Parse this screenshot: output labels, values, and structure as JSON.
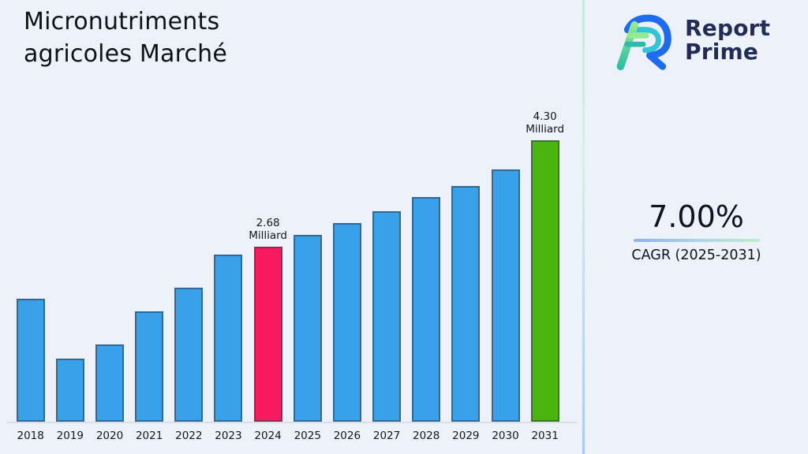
{
  "page": {
    "title_line1": "Micronutriments",
    "title_line2": "agricoles Marché",
    "background_color": "#EDF2FA"
  },
  "logo": {
    "name": "report-prime-logo",
    "line1": "Report",
    "line2": "Prime",
    "text_color": "#232C56",
    "icon_colors": {
      "blue": "#1E6BF0",
      "cyan": "#35C3D8",
      "light_green": "#93EB8E",
      "teal": "#2FB9A8"
    }
  },
  "stats": {
    "cagr_value": "7.00%",
    "cagr_label": "CAGR (2025-2031)"
  },
  "chart_data": {
    "type": "bar",
    "title": "Micronutriments agricoles Marché",
    "unit": "Milliard",
    "xlabel": "",
    "ylabel": "",
    "categories": [
      "2018",
      "2019",
      "2020",
      "2021",
      "2022",
      "2023",
      "2024",
      "2025",
      "2026",
      "2027",
      "2028",
      "2029",
      "2030",
      "2031"
    ],
    "values": [
      1.88,
      0.96,
      1.18,
      1.69,
      2.05,
      2.56,
      2.68,
      2.86,
      3.04,
      3.22,
      3.43,
      3.6,
      3.85,
      4.3
    ],
    "annotations": [
      {
        "category": "2024",
        "lines": [
          "2.68",
          "Milliard"
        ]
      },
      {
        "category": "2031",
        "lines": [
          "4.30",
          "Milliard"
        ]
      }
    ],
    "bar_color_default": "#38A1E9",
    "highlight_colors": {
      "2024": "#F91B60",
      "2031": "#48B60F"
    },
    "bar_border_color": "rgba(52,58,70,0.55)",
    "ylim": [
      0,
      4.8
    ],
    "grid": false,
    "y_axis_visible": false,
    "legend": null
  }
}
